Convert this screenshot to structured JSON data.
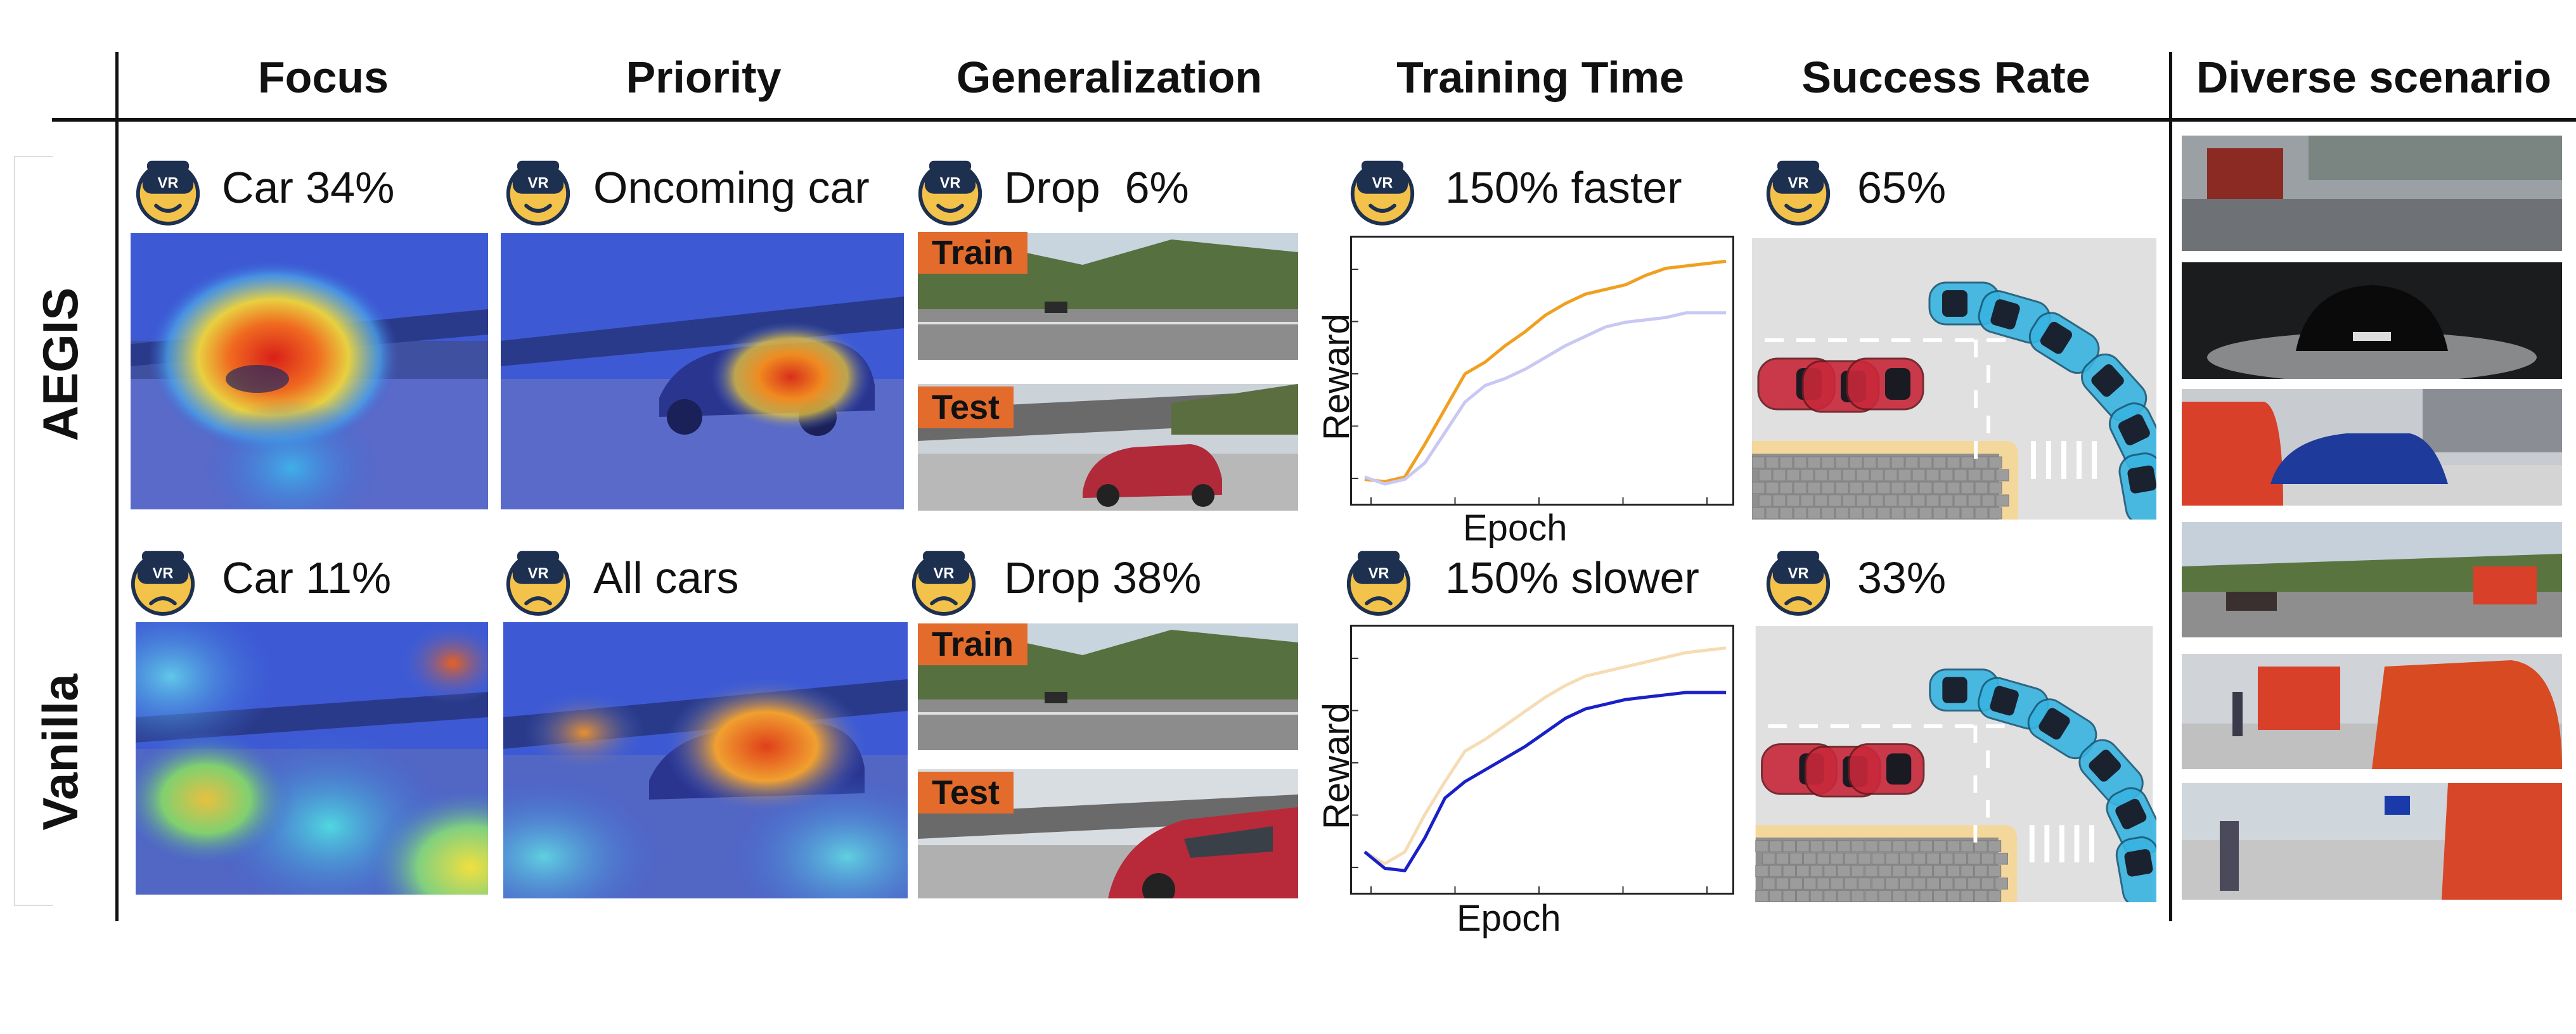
{
  "columns": {
    "focus": "Focus",
    "priority": "Priority",
    "generalization": "Generalization",
    "training_time": "Training Time",
    "success_rate": "Success Rate",
    "diverse": "Diverse scenario"
  },
  "rows": {
    "aegis": {
      "label": "AEGIS",
      "focus": "Car 34%",
      "priority": "Oncoming car",
      "generalization": "Drop  6%",
      "training_time": "150% faster",
      "success_rate": "65%"
    },
    "vanilla": {
      "label": "Vanilla",
      "focus": "Car 11%",
      "priority": "All cars",
      "generalization": "Drop 38%",
      "training_time": "150% slower",
      "success_rate": "33%"
    }
  },
  "tags": {
    "train": "Train",
    "test": "Test"
  },
  "icon_text": "VR",
  "icons": {
    "happy": "happy-vr-face-icon",
    "sad": "sad-vr-face-icon"
  },
  "colors": {
    "aegis": "#f0a020",
    "vanilla": "#1a20c8",
    "tag": "#e36c2d"
  },
  "chart_data": [
    {
      "type": "line",
      "xlabel": "Epoch",
      "ylabel": "Reward",
      "highlight": "AEGIS",
      "series": [
        {
          "values": [
            0.05,
            0.04,
            0.06,
            0.2,
            0.35,
            0.5,
            0.55,
            0.62,
            0.68,
            0.75,
            0.8,
            0.84,
            0.86,
            0.88,
            0.92,
            0.95,
            0.96,
            0.97,
            0.98
          ],
          "color": "#f0a020"
        },
        {
          "values": [
            0.06,
            0.03,
            0.05,
            0.12,
            0.25,
            0.38,
            0.45,
            0.48,
            0.52,
            0.57,
            0.62,
            0.66,
            0.7,
            0.72,
            0.73,
            0.74,
            0.76,
            0.76,
            0.76
          ],
          "color": "#c9c8f4"
        }
      ]
    },
    {
      "type": "line",
      "xlabel": "Epoch",
      "ylabel": "Reward",
      "highlight": "Vanilla",
      "series": [
        {
          "values": [
            0.12,
            0.07,
            0.12,
            0.28,
            0.42,
            0.55,
            0.6,
            0.66,
            0.72,
            0.78,
            0.83,
            0.87,
            0.89,
            0.91,
            0.93,
            0.95,
            0.97,
            0.98,
            0.99
          ],
          "color": "#f6dcb4"
        },
        {
          "values": [
            0.12,
            0.05,
            0.04,
            0.18,
            0.35,
            0.42,
            0.47,
            0.52,
            0.57,
            0.63,
            0.69,
            0.73,
            0.75,
            0.77,
            0.78,
            0.79,
            0.8,
            0.8,
            0.8
          ],
          "color": "#1a20c8"
        }
      ]
    }
  ]
}
